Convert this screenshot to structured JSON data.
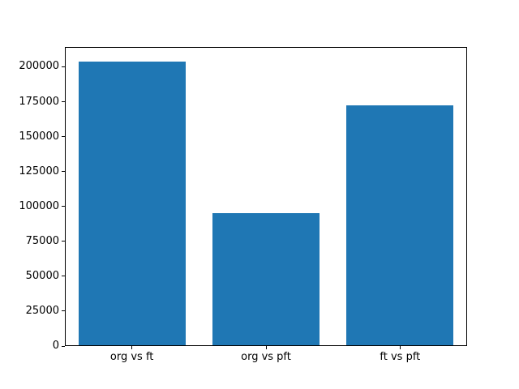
{
  "figure": {
    "background": "#ffffff",
    "bar_color": "#1f77b4",
    "axis_color": "#000000",
    "tick_label_color": "#000000"
  },
  "chart_data": {
    "type": "bar",
    "title": "",
    "xlabel": "",
    "ylabel": "",
    "categories": [
      "org vs ft",
      "org vs pft",
      "ft vs pft"
    ],
    "values": [
      204000,
      95000,
      173000
    ],
    "ylim": [
      0,
      214200
    ],
    "yticks": [
      0,
      25000,
      50000,
      75000,
      100000,
      125000,
      150000,
      175000,
      200000
    ],
    "ytick_labels": [
      "0",
      "25000",
      "50000",
      "75000",
      "100000",
      "125000",
      "150000",
      "175000",
      "200000"
    ],
    "bar_width_fraction": 0.8,
    "grid": false,
    "legend": false
  }
}
